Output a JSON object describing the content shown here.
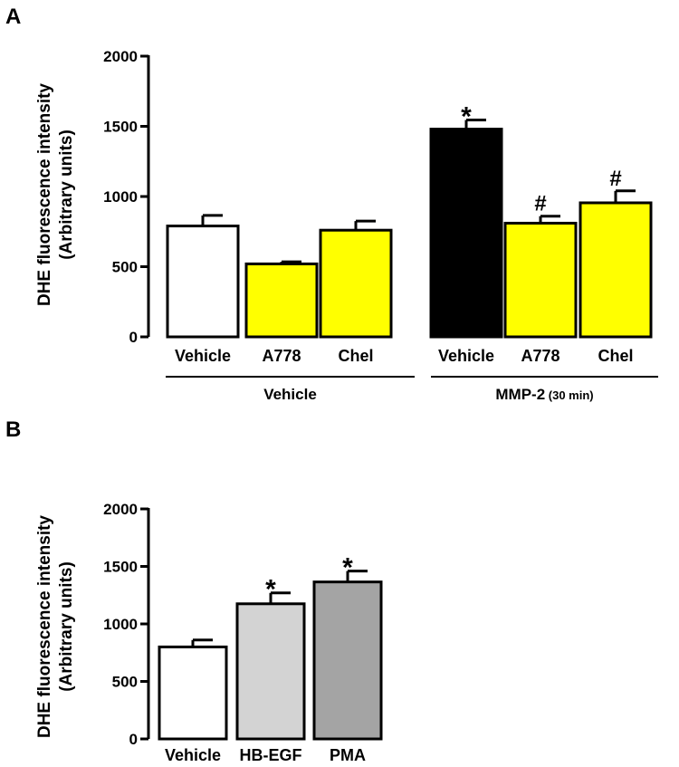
{
  "chart_data": [
    {
      "type": "bar",
      "panel_label": "A",
      "ylabel_line1": "DHE fluorescence intensity",
      "ylabel_line2": "(Arbitrary units)",
      "ylim": [
        0,
        2000
      ],
      "yticks": [
        "0",
        "500",
        "1000",
        "1500",
        "2000"
      ],
      "ytick_values": [
        0,
        500,
        1000,
        1500,
        2000
      ],
      "categories": [
        "Vehicle",
        "A778",
        "Chel",
        "Vehicle",
        "A778",
        "Chel"
      ],
      "values": [
        790,
        520,
        760,
        1480,
        810,
        955
      ],
      "errors": [
        75,
        15,
        65,
        65,
        50,
        85
      ],
      "colors": [
        "#ffffff",
        "#ffff00",
        "#ffff00",
        "#000000",
        "#ffff00",
        "#ffff00"
      ],
      "annotations": [
        "",
        "",
        "",
        "*",
        "#",
        "#"
      ],
      "groups": [
        {
          "label": "Vehicle",
          "suffix": "",
          "members": [
            0,
            1,
            2
          ]
        },
        {
          "label": "MMP-2",
          "suffix": "(30 min)",
          "members": [
            3,
            4,
            5
          ]
        }
      ]
    },
    {
      "type": "bar",
      "panel_label": "B",
      "ylabel_line1": "DHE fluorescence intensity",
      "ylabel_line2": "(Arbitrary units)",
      "ylim": [
        0,
        2000
      ],
      "yticks": [
        "0",
        "500",
        "1000",
        "1500",
        "2000"
      ],
      "ytick_values": [
        0,
        500,
        1000,
        1500,
        2000
      ],
      "categories": [
        "Vehicle",
        "HB-EGF",
        "PMA"
      ],
      "values": [
        800,
        1175,
        1365
      ],
      "errors": [
        60,
        95,
        95
      ],
      "colors": [
        "#ffffff",
        "#d3d3d3",
        "#a4a4a4"
      ],
      "annotations": [
        "",
        "*",
        "*"
      ]
    }
  ]
}
